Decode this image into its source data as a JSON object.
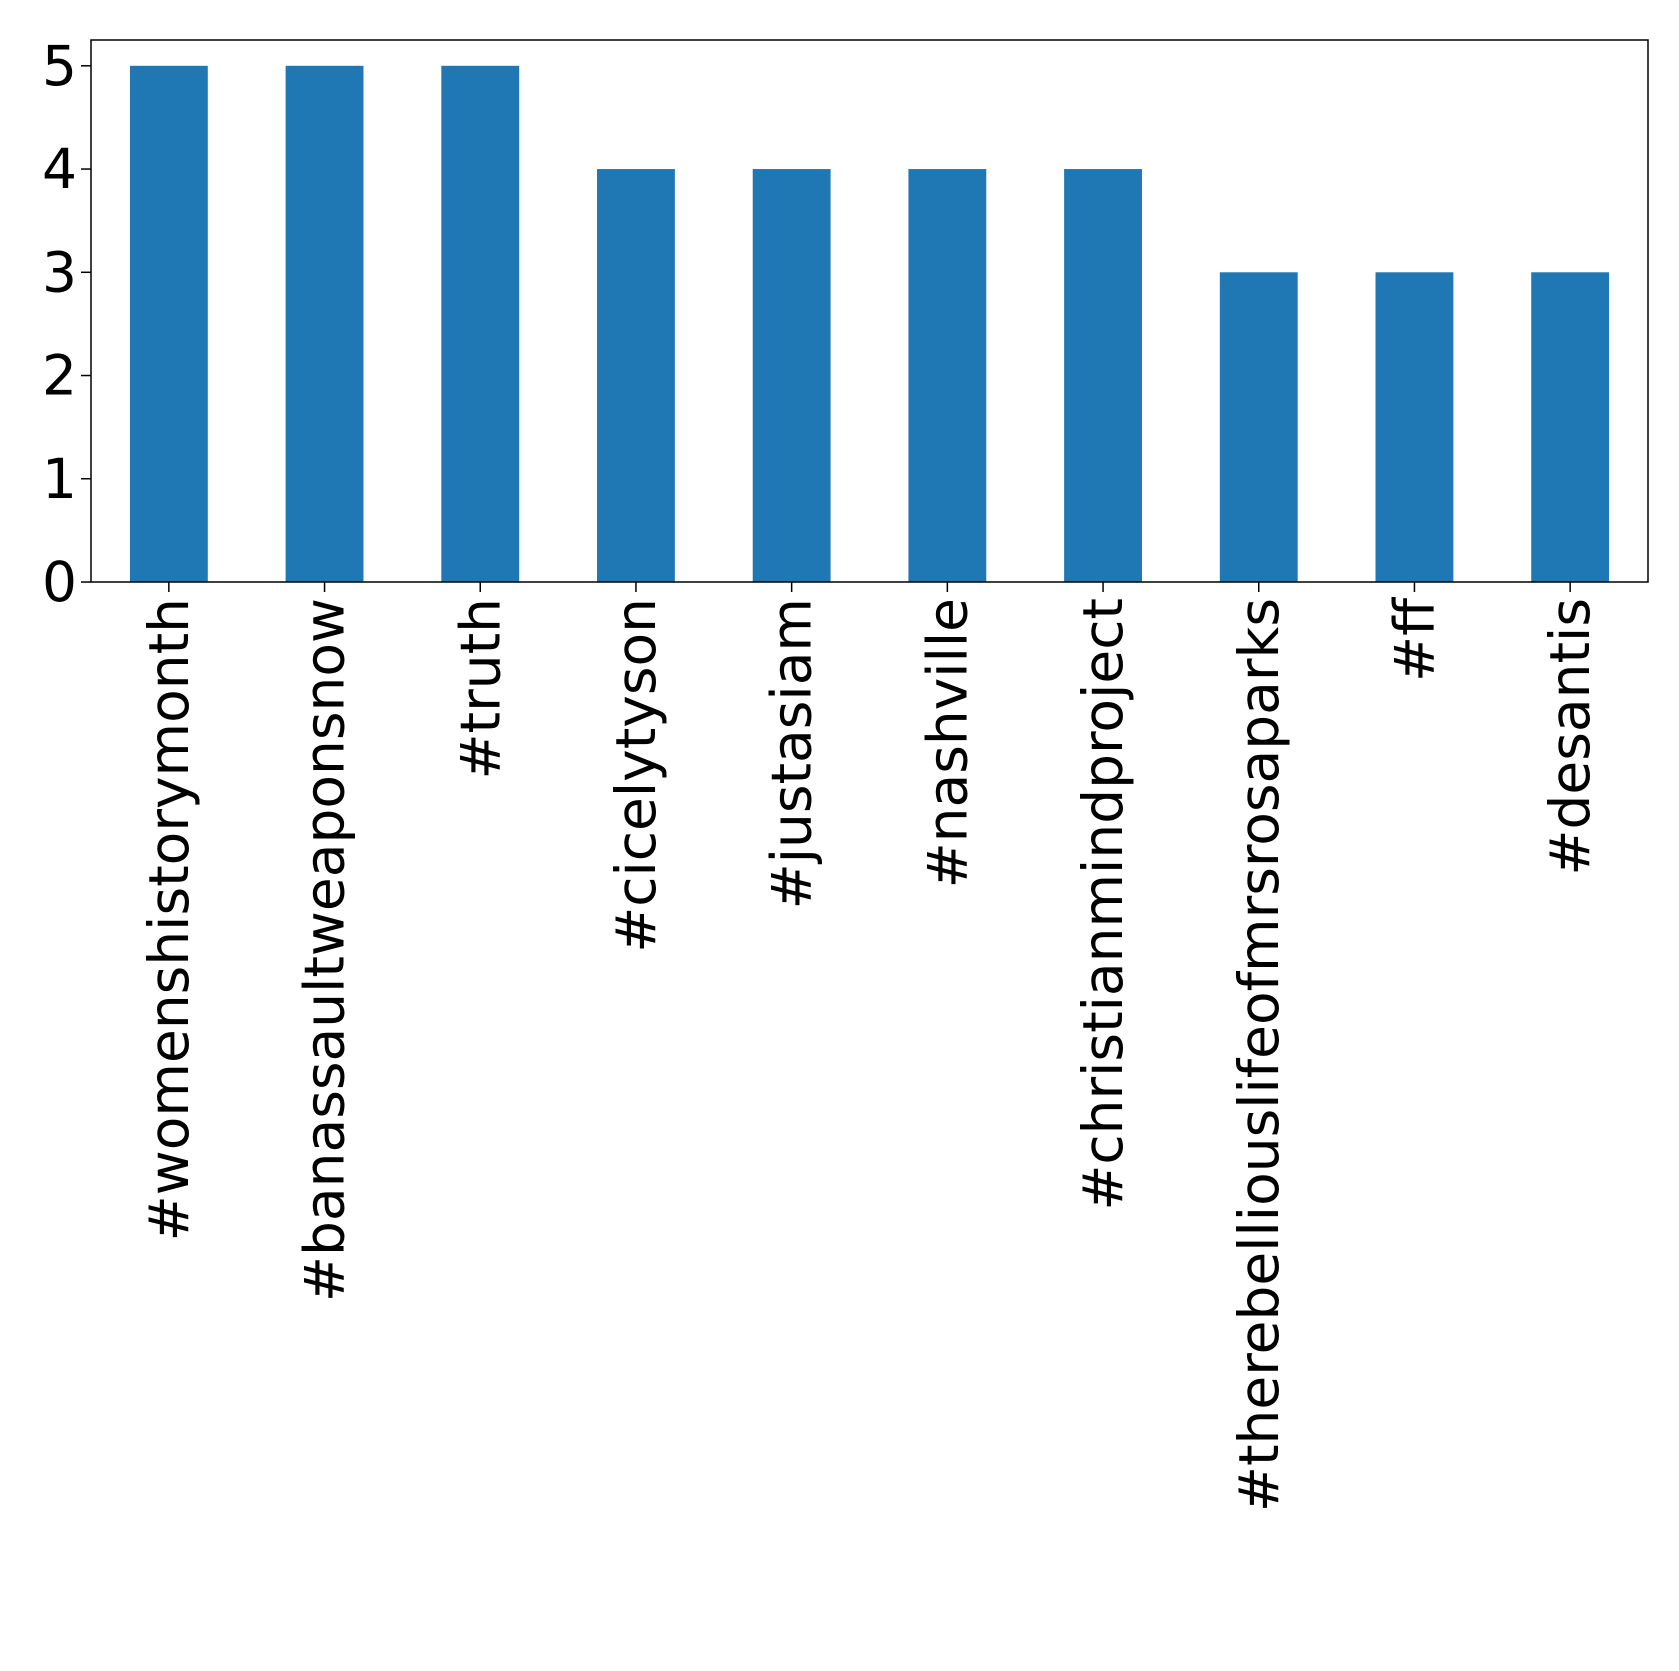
{
  "chart_data": {
    "type": "bar",
    "title": "",
    "xlabel": "",
    "ylabel": "",
    "categories": [
      "#womenshistorymonth",
      "#banassaultweaponsnow",
      "#truth",
      "#cicelytyson",
      "#justasiam",
      "#nashville",
      "#christianmindproject",
      "#therebelliouslifeofmrsrosaparks",
      "#ff",
      "#desantis"
    ],
    "values": [
      5,
      5,
      5,
      4,
      4,
      4,
      4,
      3,
      3,
      3
    ],
    "ylim": [
      0,
      5.25
    ],
    "yticks": [
      "0",
      "1",
      "2",
      "3",
      "4",
      "5"
    ],
    "bar_color": "#1f77b4",
    "grid": false,
    "legend": false,
    "xtick_rotation": "vertical"
  }
}
